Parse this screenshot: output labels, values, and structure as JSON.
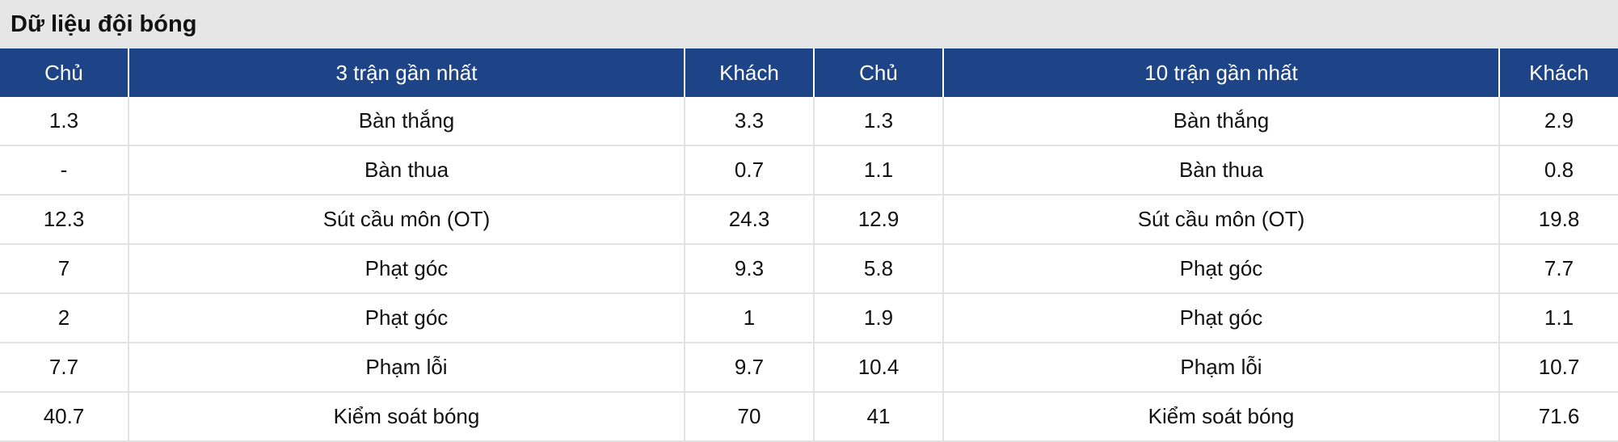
{
  "title": "Dữ liệu đội bóng",
  "headers": [
    "Chủ",
    "3 trận gần nhất",
    "Khách",
    "Chủ",
    "10 trận gần nhất",
    "Khách"
  ],
  "rows": [
    [
      "1.3",
      "Bàn thắng",
      "3.3",
      "1.3",
      "Bàn thắng",
      "2.9"
    ],
    [
      "-",
      "Bàn thua",
      "0.7",
      "1.1",
      "Bàn thua",
      "0.8"
    ],
    [
      "12.3",
      "Sút cầu môn (OT)",
      "24.3",
      "12.9",
      "Sút cầu môn (OT)",
      "19.8"
    ],
    [
      "7",
      "Phạt góc",
      "9.3",
      "5.8",
      "Phạt góc",
      "7.7"
    ],
    [
      "2",
      "Phạt góc",
      "1",
      "1.9",
      "Phạt góc",
      "1.1"
    ],
    [
      "7.7",
      "Phạm lỗi",
      "9.7",
      "10.4",
      "Phạm lỗi",
      "10.7"
    ],
    [
      "40.7",
      "Kiểm soát bóng",
      "70",
      "41",
      "Kiểm soát bóng",
      "71.6"
    ]
  ],
  "colors": {
    "header_bg": "#1e4488",
    "title_bg": "#e6e6e6"
  }
}
